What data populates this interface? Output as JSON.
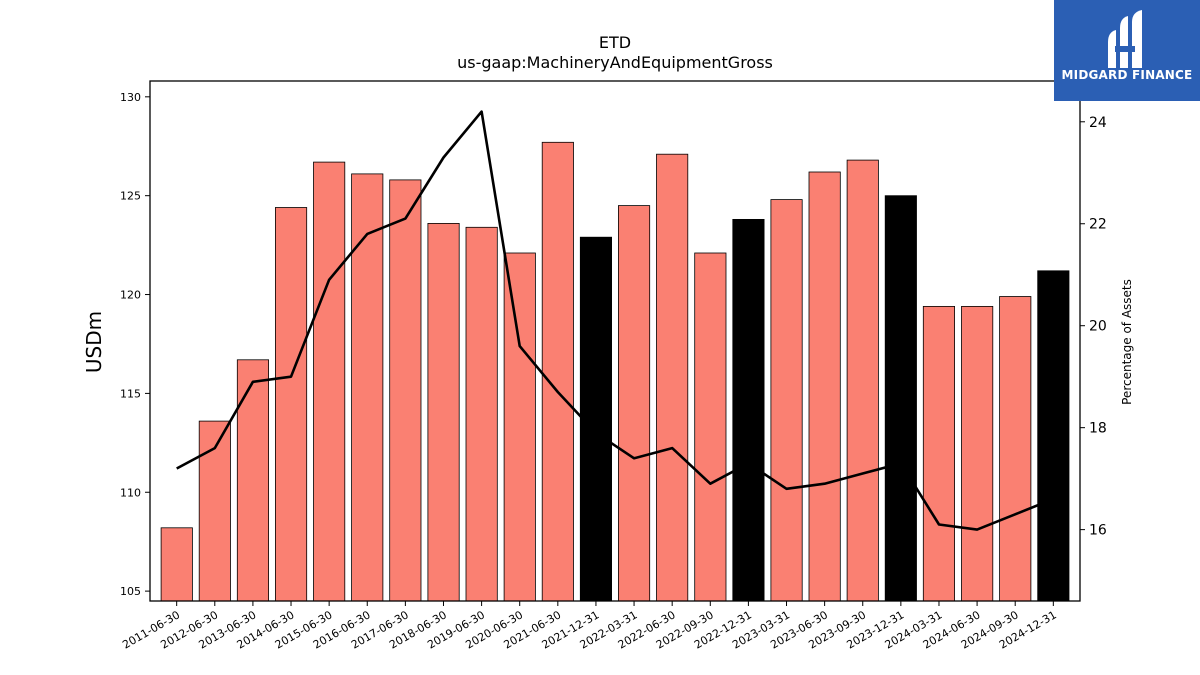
{
  "chart_data": {
    "type": "bar",
    "title": "ETD",
    "subtitle": "us-gaap:MachineryAndEquipmentGross",
    "ylabel": "USDm",
    "y2label": "Percentage of Assets",
    "ylim": [
      104.5,
      130.8
    ],
    "y2lim": [
      14.6,
      24.8
    ],
    "yticks": [
      105,
      110,
      115,
      120,
      125,
      130
    ],
    "y2ticks": [
      16,
      18,
      20,
      22,
      24
    ],
    "categories": [
      "2011-06-30",
      "2012-06-30",
      "2013-06-30",
      "2014-06-30",
      "2015-06-30",
      "2016-06-30",
      "2017-06-30",
      "2018-06-30",
      "2019-06-30",
      "2020-06-30",
      "2021-06-30",
      "2021-12-31",
      "2022-03-31",
      "2022-06-30",
      "2022-09-30",
      "2022-12-31",
      "2023-03-31",
      "2023-06-30",
      "2023-09-30",
      "2023-12-31",
      "2024-03-31",
      "2024-06-30",
      "2024-09-30",
      "2024-12-31"
    ],
    "series": [
      {
        "type": "bar",
        "values": [
          108.2,
          113.6,
          116.7,
          124.4,
          126.7,
          126.1,
          125.8,
          123.6,
          123.4,
          122.1,
          127.7,
          122.9,
          124.5,
          127.1,
          122.1,
          123.8,
          124.8,
          126.2,
          126.8,
          125.0,
          119.4,
          119.4,
          119.9,
          121.2
        ],
        "colors": [
          "#fa8072",
          "#fa8072",
          "#fa8072",
          "#fa8072",
          "#fa8072",
          "#fa8072",
          "#fa8072",
          "#fa8072",
          "#fa8072",
          "#fa8072",
          "#fa8072",
          "#000000",
          "#fa8072",
          "#fa8072",
          "#fa8072",
          "#000000",
          "#fa8072",
          "#fa8072",
          "#fa8072",
          "#000000",
          "#fa8072",
          "#fa8072",
          "#fa8072",
          "#000000"
        ]
      },
      {
        "type": "line",
        "axis": "right",
        "color": "#000000",
        "values": [
          17.2,
          17.6,
          18.9,
          19.0,
          20.9,
          21.8,
          22.1,
          23.3,
          24.2,
          19.6,
          18.7,
          17.9,
          17.4,
          17.6,
          16.9,
          17.3,
          16.8,
          16.9,
          17.1,
          17.3,
          16.1,
          16.0,
          16.3,
          16.6
        ]
      }
    ]
  },
  "logo": {
    "text": "MIDGARD FINANCE"
  }
}
